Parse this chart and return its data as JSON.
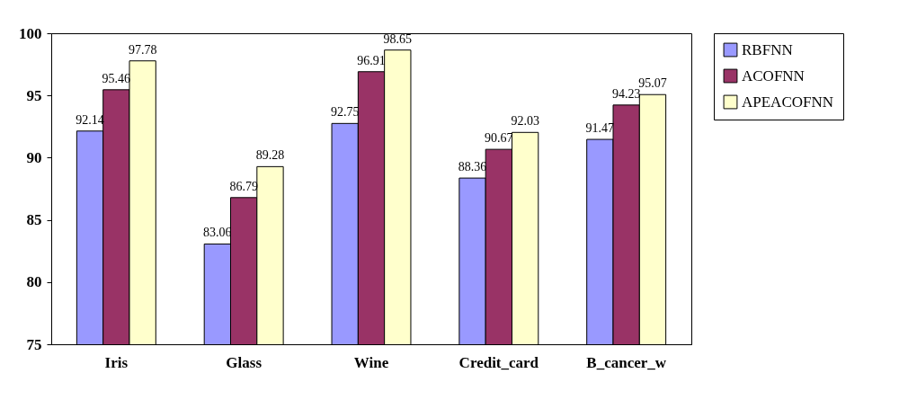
{
  "chart_data": {
    "type": "bar",
    "categories": [
      "Iris",
      "Glass",
      "Wine",
      "Credit_card",
      "B_cancer_w"
    ],
    "series": [
      {
        "name": "RBFNN",
        "color": "#9999ff",
        "values": [
          92.14,
          83.06,
          92.75,
          88.36,
          91.47
        ]
      },
      {
        "name": "ACOFNN",
        "color": "#993366",
        "values": [
          95.46,
          86.79,
          96.91,
          90.67,
          94.23
        ]
      },
      {
        "name": "APEACOFNN",
        "color": "#ffffcc",
        "values": [
          97.78,
          89.28,
          98.65,
          92.03,
          95.07
        ]
      }
    ],
    "ylim": [
      75,
      100
    ],
    "yticks": [
      75,
      80,
      85,
      90,
      95,
      100
    ],
    "grid": false,
    "legend": "right",
    "data_labels": true
  }
}
